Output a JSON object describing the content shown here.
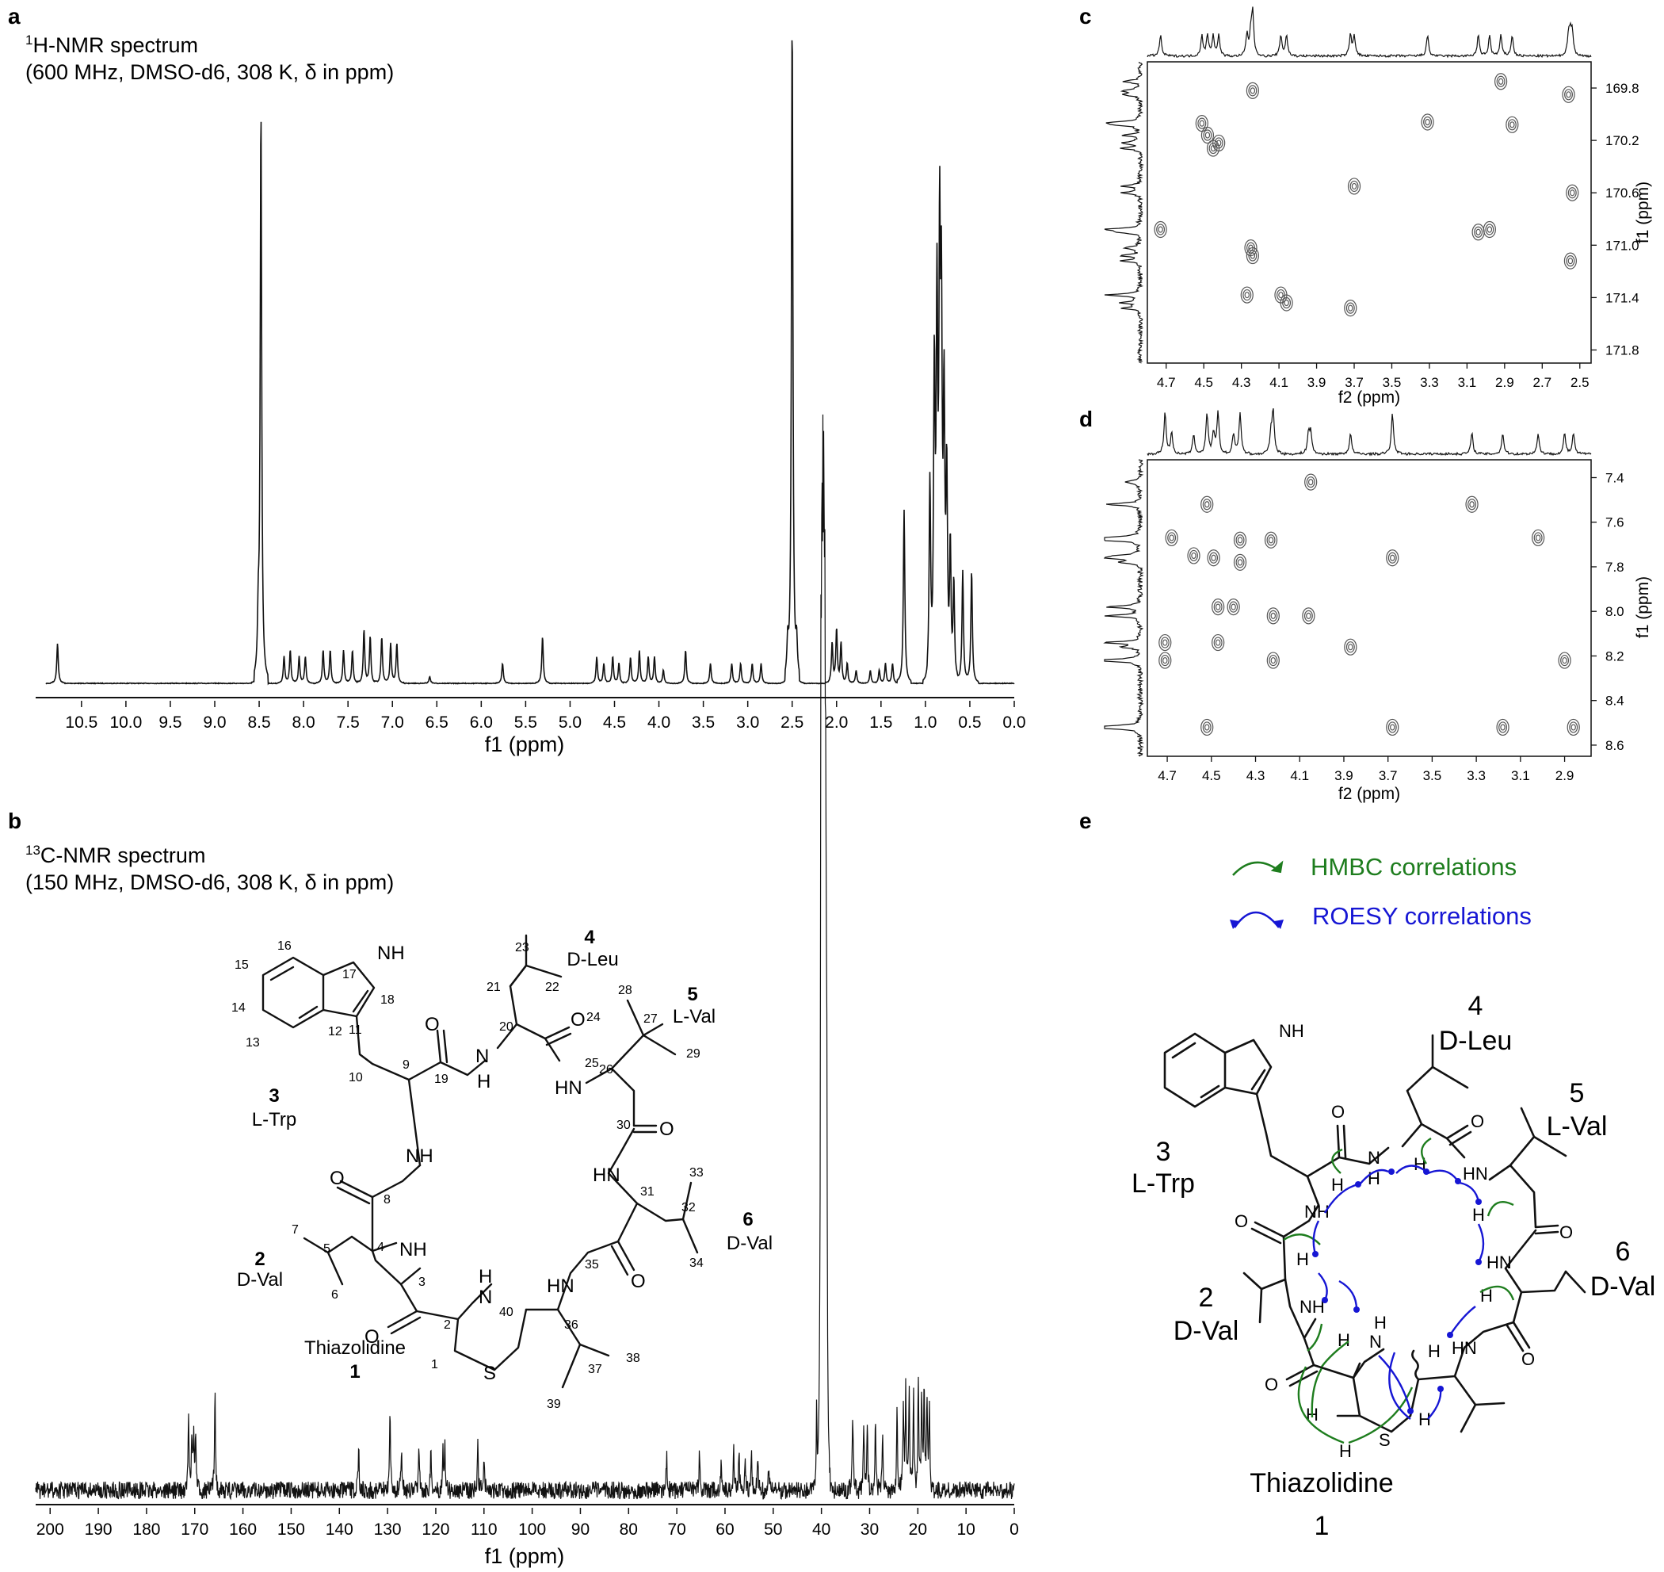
{
  "colors": {
    "hmbc": "#1e7d1e",
    "roesy": "#1616d4",
    "line": "#111111",
    "contour": "#555555"
  },
  "panels": {
    "a": {
      "label": "a",
      "title_line1": "H-NMR spectrum",
      "title_sup": "1",
      "title_line2": "(600 MHz, DMSO-d6, 308 K, δ in ppm)",
      "xlabel": "f1 (ppm)"
    },
    "b": {
      "label": "b",
      "title_line1": "C-NMR spectrum",
      "title_sup": "13",
      "title_line2": "(150 MHz, DMSO-d6, 308 K, δ in ppm)",
      "xlabel": "f1 (ppm)"
    },
    "c": {
      "label": "c",
      "xlabel": "f2 (ppm)",
      "ylabel": "f1 (ppm)"
    },
    "d": {
      "label": "d",
      "xlabel": "f2 (ppm)",
      "ylabel": "f1 (ppm)"
    },
    "e": {
      "label": "e",
      "hmbc_label": "HMBC correlations",
      "roesy_label": "ROESY correlations"
    }
  },
  "structure_b": {
    "residues": [
      {
        "num": "1",
        "name": "Thiazolidine"
      },
      {
        "num": "2",
        "name": "D-Val"
      },
      {
        "num": "3",
        "name": "L-Trp"
      },
      {
        "num": "4",
        "name": "D-Leu"
      },
      {
        "num": "5",
        "name": "L-Val"
      },
      {
        "num": "6",
        "name": "D-Val"
      }
    ]
  },
  "structure_e": {
    "residues": [
      {
        "num": "1",
        "name": "Thiazolidine"
      },
      {
        "num": "2",
        "name": "D-Val"
      },
      {
        "num": "3",
        "name": "L-Trp"
      },
      {
        "num": "4",
        "name": "D-Leu"
      },
      {
        "num": "5",
        "name": "L-Val"
      },
      {
        "num": "6",
        "name": "D-Val"
      }
    ]
  },
  "chart_data": [
    {
      "id": "a",
      "type": "line",
      "xlabel": "f1 (ppm)",
      "xlim": [
        10.9,
        0.0
      ],
      "reversed": true,
      "xticks": [
        "10.5",
        "10.0",
        "9.5",
        "9.0",
        "8.5",
        "8.0",
        "7.5",
        "7.0",
        "6.5",
        "6.0",
        "5.5",
        "5.0",
        "4.5",
        "4.0",
        "3.5",
        "3.0",
        "2.5",
        "2.0",
        "1.5",
        "1.0",
        "0.5",
        "0.0"
      ],
      "peaks": [
        [
          10.77,
          0.06
        ],
        [
          8.51,
          0.08
        ],
        [
          8.48,
          0.86
        ],
        [
          8.22,
          0.04
        ],
        [
          8.15,
          0.05
        ],
        [
          8.05,
          0.04
        ],
        [
          7.98,
          0.04
        ],
        [
          7.78,
          0.05
        ],
        [
          7.7,
          0.05
        ],
        [
          7.55,
          0.05
        ],
        [
          7.45,
          0.05
        ],
        [
          7.32,
          0.08
        ],
        [
          7.25,
          0.07
        ],
        [
          7.12,
          0.07
        ],
        [
          7.02,
          0.06
        ],
        [
          6.95,
          0.06
        ],
        [
          6.58,
          0.01
        ],
        [
          5.76,
          0.03
        ],
        [
          5.31,
          0.07
        ],
        [
          4.7,
          0.04
        ],
        [
          4.62,
          0.03
        ],
        [
          4.52,
          0.04
        ],
        [
          4.45,
          0.03
        ],
        [
          4.32,
          0.04
        ],
        [
          4.22,
          0.05
        ],
        [
          4.12,
          0.04
        ],
        [
          4.05,
          0.04
        ],
        [
          3.95,
          0.02
        ],
        [
          3.7,
          0.05
        ],
        [
          3.42,
          0.03
        ],
        [
          3.18,
          0.03
        ],
        [
          3.08,
          0.03
        ],
        [
          2.95,
          0.03
        ],
        [
          2.85,
          0.03
        ],
        [
          2.55,
          0.05
        ],
        [
          2.5,
          1.0
        ],
        [
          2.45,
          0.05
        ],
        [
          2.05,
          0.06
        ],
        [
          2.0,
          0.08
        ],
        [
          1.95,
          0.06
        ],
        [
          1.88,
          0.03
        ],
        [
          1.78,
          0.02
        ],
        [
          1.62,
          0.02
        ],
        [
          1.52,
          0.02
        ],
        [
          1.45,
          0.03
        ],
        [
          1.37,
          0.03
        ],
        [
          1.24,
          0.26
        ],
        [
          0.95,
          0.3
        ],
        [
          0.9,
          0.45
        ],
        [
          0.87,
          0.54
        ],
        [
          0.84,
          0.6
        ],
        [
          0.82,
          0.5
        ],
        [
          0.79,
          0.4
        ],
        [
          0.76,
          0.3
        ],
        [
          0.72,
          0.2
        ],
        [
          0.68,
          0.15
        ],
        [
          0.58,
          0.17
        ],
        [
          0.48,
          0.17
        ]
      ]
    },
    {
      "id": "b",
      "type": "line",
      "xlabel": "f1 (ppm)",
      "xlim": [
        203,
        0
      ],
      "reversed": true,
      "xticks": [
        "200",
        "190",
        "180",
        "170",
        "160",
        "150",
        "140",
        "130",
        "120",
        "110",
        "100",
        "90",
        "80",
        "70",
        "60",
        "50",
        "40",
        "30",
        "20",
        "10",
        "0"
      ],
      "peaks": [
        [
          171.3,
          0.11
        ],
        [
          170.6,
          0.09
        ],
        [
          170.2,
          0.08
        ],
        [
          169.8,
          0.08
        ],
        [
          165.8,
          0.16
        ],
        [
          136.0,
          0.07
        ],
        [
          129.5,
          0.13
        ],
        [
          127.1,
          0.07
        ],
        [
          123.5,
          0.08
        ],
        [
          121.0,
          0.06
        ],
        [
          118.5,
          0.06
        ],
        [
          118.1,
          0.06
        ],
        [
          111.3,
          0.07
        ],
        [
          110.0,
          0.06
        ],
        [
          72.1,
          0.05
        ],
        [
          65.3,
          0.06
        ],
        [
          60.8,
          0.05
        ],
        [
          58.2,
          0.07
        ],
        [
          57.1,
          0.06
        ],
        [
          55.8,
          0.05
        ],
        [
          54.5,
          0.05
        ],
        [
          53.2,
          0.05
        ],
        [
          50.9,
          0.04
        ],
        [
          41.0,
          0.12
        ],
        [
          40.1,
          1.0
        ],
        [
          39.9,
          0.98
        ],
        [
          39.7,
          0.96
        ],
        [
          39.5,
          1.0
        ],
        [
          39.3,
          0.9
        ],
        [
          39.1,
          0.7
        ],
        [
          38.9,
          0.5
        ],
        [
          33.5,
          0.12
        ],
        [
          31.2,
          0.1
        ],
        [
          30.5,
          0.11
        ],
        [
          28.8,
          0.1
        ],
        [
          27.3,
          0.09
        ],
        [
          24.3,
          0.12
        ],
        [
          23.0,
          0.14
        ],
        [
          22.5,
          0.15
        ],
        [
          21.8,
          0.16
        ],
        [
          20.9,
          0.15
        ],
        [
          19.9,
          0.17
        ],
        [
          19.2,
          0.15
        ],
        [
          18.7,
          0.16
        ],
        [
          18.1,
          0.14
        ],
        [
          17.6,
          0.12
        ]
      ]
    },
    {
      "id": "c",
      "type": "heatmap",
      "xlabel": "f2 (ppm)",
      "ylabel": "f1 (ppm)",
      "xlim": [
        4.8,
        2.44
      ],
      "ylim": [
        169.6,
        171.9
      ],
      "xticks": [
        "4.7",
        "4.5",
        "4.3",
        "4.1",
        "3.9",
        "3.7",
        "3.5",
        "3.3",
        "3.1",
        "2.9",
        "2.7",
        "2.5"
      ],
      "yticks": [
        "169.8",
        "170.2",
        "170.6",
        "171.0",
        "171.4",
        "171.8"
      ],
      "cross_peaks": [
        [
          4.24,
          169.82
        ],
        [
          4.51,
          170.07
        ],
        [
          4.48,
          170.16
        ],
        [
          4.45,
          170.26
        ],
        [
          4.42,
          170.22
        ],
        [
          3.7,
          170.55
        ],
        [
          3.31,
          170.06
        ],
        [
          2.86,
          170.08
        ],
        [
          2.54,
          170.6
        ],
        [
          2.56,
          169.85
        ],
        [
          2.92,
          169.75
        ],
        [
          4.73,
          170.88
        ],
        [
          4.25,
          171.02
        ],
        [
          4.24,
          171.08
        ],
        [
          3.04,
          170.9
        ],
        [
          2.98,
          170.88
        ],
        [
          4.27,
          171.38
        ],
        [
          4.09,
          171.38
        ],
        [
          4.06,
          171.44
        ],
        [
          3.72,
          171.48
        ],
        [
          2.55,
          171.12
        ]
      ]
    },
    {
      "id": "d",
      "type": "heatmap",
      "xlabel": "f2 (ppm)",
      "ylabel": "f1 (ppm)",
      "xlim": [
        4.79,
        2.78
      ],
      "ylim": [
        7.32,
        8.65
      ],
      "xticks": [
        "4.7",
        "4.5",
        "4.3",
        "4.1",
        "3.9",
        "3.7",
        "3.5",
        "3.3",
        "3.1",
        "2.9"
      ],
      "yticks": [
        "7.4",
        "7.6",
        "7.8",
        "8.0",
        "8.2",
        "8.4",
        "8.6"
      ],
      "cross_peaks": [
        [
          4.05,
          7.42
        ],
        [
          4.52,
          7.52
        ],
        [
          3.32,
          7.52
        ],
        [
          4.68,
          7.67
        ],
        [
          4.37,
          7.68
        ],
        [
          4.23,
          7.68
        ],
        [
          3.02,
          7.67
        ],
        [
          4.58,
          7.75
        ],
        [
          4.49,
          7.76
        ],
        [
          4.37,
          7.78
        ],
        [
          3.68,
          7.76
        ],
        [
          4.47,
          7.98
        ],
        [
          4.4,
          7.98
        ],
        [
          4.22,
          8.02
        ],
        [
          4.06,
          8.02
        ],
        [
          4.71,
          8.14
        ],
        [
          4.47,
          8.14
        ],
        [
          3.87,
          8.16
        ],
        [
          4.22,
          8.22
        ],
        [
          2.9,
          8.22
        ],
        [
          4.71,
          8.22
        ],
        [
          3.68,
          8.52
        ],
        [
          3.18,
          8.52
        ],
        [
          4.52,
          8.52
        ],
        [
          2.86,
          8.52
        ]
      ]
    }
  ]
}
